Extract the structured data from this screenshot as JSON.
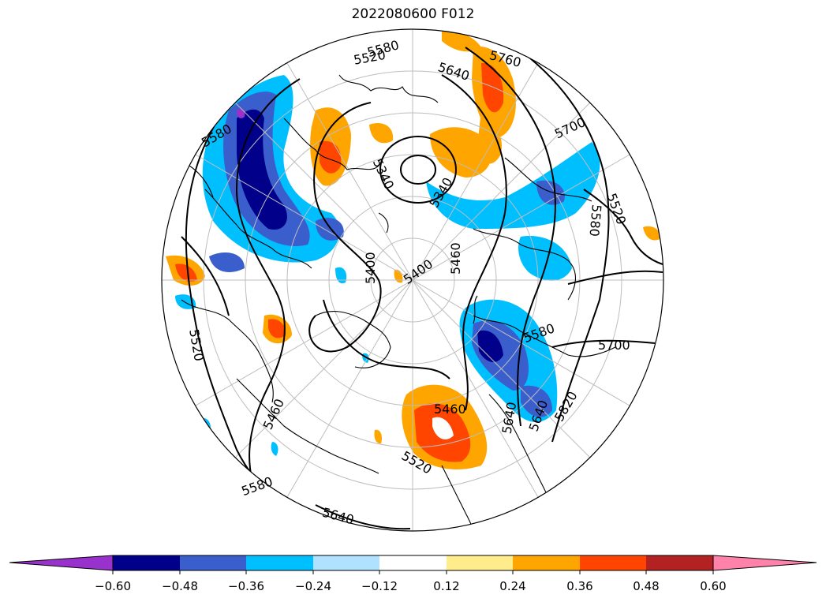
{
  "title": "2022080600 F012",
  "projection": "north-polar-stereographic",
  "field": {
    "contour_labels": [
      "5580",
      "5520",
      "5760",
      "5640",
      "5700",
      "5580",
      "5340",
      "5340",
      "5520",
      "5580",
      "5400",
      "5400",
      "5460",
      "5580",
      "5700",
      "5460",
      "5640",
      "5640",
      "5820",
      "5520",
      "5460",
      "5580",
      "5640",
      "5520"
    ]
  },
  "colorbar": {
    "ticks": [
      "−0.60",
      "−0.48",
      "−0.36",
      "−0.24",
      "−0.12",
      "0.12",
      "0.24",
      "0.36",
      "0.48",
      "0.60"
    ],
    "colors": [
      "#9932cc",
      "#00008b",
      "#3a5fcd",
      "#00bfff",
      "#b0e2ff",
      "#ffffff",
      "#ffec8b",
      "#ffa500",
      "#ff4500",
      "#b22222",
      "#ff82ab"
    ],
    "extend": "both"
  },
  "anomaly_colors": {
    "neg_strong": "#00008b",
    "neg_mid": "#3a5fcd",
    "neg_light": "#00bfff",
    "pos_light": "#ffec8b",
    "pos_mid": "#ffa500",
    "pos_strong": "#ff4500",
    "neg_extreme": "#9932cc"
  }
}
